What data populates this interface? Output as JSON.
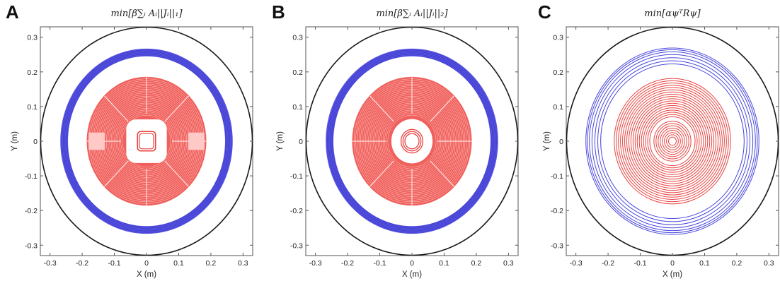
{
  "figure": {
    "panels": [
      {
        "id": "A",
        "letter": "A",
        "title": "min[β∑ᵢ Aᵢ||Jᵢ||₁]",
        "xlabel": "X (m)",
        "ylabel": "Y (m)",
        "xticks": [
          "-0.3",
          "-0.2",
          "-0.1",
          "0",
          "0.1",
          "0.2",
          "0.3"
        ],
        "yticks": [
          "0.3",
          "0.2",
          "0.1",
          "0",
          "-0.1",
          "-0.2",
          "-0.3"
        ],
        "style": "square"
      },
      {
        "id": "B",
        "letter": "B",
        "title": "min[β∑ᵢ Aᵢ||Jᵢ||₂]",
        "xlabel": "X (m)",
        "ylabel": "Y (m)",
        "xticks": [
          "-0.3",
          "-0.2",
          "-0.1",
          "0",
          "0.1",
          "0.2",
          "0.3"
        ],
        "yticks": [
          "0.3",
          "0.2",
          "0.1",
          "0",
          "-0.1",
          "-0.2",
          "-0.3"
        ],
        "style": "round"
      },
      {
        "id": "C",
        "letter": "C",
        "title": "min[αψᵀRψ]",
        "xlabel": "X (m)",
        "ylabel": "Y (m)",
        "xticks": [
          "-0.3",
          "-0.2",
          "-0.1",
          "0",
          "0.1",
          "0.2",
          "0.3"
        ],
        "yticks": [
          "0.3",
          "0.2",
          "0.1",
          "0",
          "-0.1",
          "-0.2",
          "-0.3"
        ],
        "style": "rings"
      }
    ],
    "colors": {
      "inner_coil": "#e8423f",
      "shield_coil": "#4a48dc",
      "boundary": "#1a1a1a"
    }
  }
}
